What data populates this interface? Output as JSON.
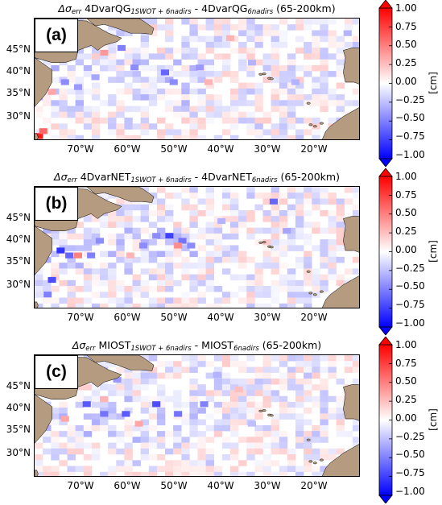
{
  "colors": {
    "land": "#b59b80",
    "positive_max": "#ff0000",
    "negative_max": "#0000ff",
    "zero": "#ffffff"
  },
  "colorbar": {
    "ticks": [
      "1.00",
      "0.75",
      "0.50",
      "0.25",
      "0.00",
      "−0.25",
      "−0.50",
      "−0.75",
      "−1.00"
    ],
    "label": "[cm]",
    "extend": "both",
    "colormap": "bwr"
  },
  "axes": {
    "lat_ticks": [
      "45°N",
      "40°N",
      "35°N",
      "30°N"
    ],
    "lon_ticks": [
      "70°W",
      "60°W",
      "50°W",
      "40°W",
      "30°W",
      "20°W"
    ]
  },
  "panels": [
    {
      "label": "(a)",
      "title_prefix": "Δσ",
      "title_err": "err",
      "title_a": "4DvarQG",
      "title_a_sub": "1SWOT + 6nadirs",
      "title_sep": " - ",
      "title_b": "4DvarQG",
      "title_b_sub": "6nadirs",
      "title_suffix": " (65-200km)"
    },
    {
      "label": "(b)",
      "title_prefix": "Δσ",
      "title_err": "err",
      "title_a": "4DvarNET",
      "title_a_sub": "1SWOT + 6nadirs",
      "title_sep": " - ",
      "title_b": "4DvarNET",
      "title_b_sub": "6nadirs",
      "title_suffix": " (65-200km)"
    },
    {
      "label": "(c)",
      "title_prefix": "Δσ",
      "title_err": "err",
      "title_a": "MIOST",
      "title_a_sub": "1SWOT + 6nadirs",
      "title_sep": " - ",
      "title_b": "MIOST",
      "title_b_sub": "6nadirs",
      "title_suffix": " (65-200km)"
    }
  ],
  "chart_data": [
    {
      "type": "heatmap",
      "panel": "(a)",
      "title": "Δσerr 4DvarQG1SWOT+6nadirs - 4DvarQG6nadirs (65-200km)",
      "x_label": "",
      "y_label": "",
      "lon_range": [
        -80,
        -5
      ],
      "lat_range": [
        25,
        50
      ],
      "colorbar_range": [
        -1.0,
        1.0
      ],
      "colorbar_label": "[cm]",
      "cells_lonlat_value": [
        [
          -79,
          26,
          0.9
        ],
        [
          -78,
          27,
          0.6
        ],
        [
          -72,
          44,
          0.5
        ],
        [
          -64,
          43,
          0.4
        ],
        [
          -60,
          44,
          -0.5
        ],
        [
          -57,
          40,
          -0.45
        ],
        [
          -50,
          39,
          -0.6
        ],
        [
          -48,
          37,
          -0.45
        ],
        [
          -42,
          40,
          -0.4
        ],
        [
          -73,
          37,
          -0.45
        ],
        [
          -70,
          36,
          -0.4
        ],
        [
          -66,
          38,
          -0.35
        ],
        [
          -76,
          35,
          0.35
        ],
        [
          -35,
          46,
          0.3
        ],
        [
          -30,
          41,
          -0.3
        ],
        [
          -20,
          37,
          -0.3
        ],
        [
          -40,
          37,
          0.3
        ],
        [
          -8,
          47,
          -0.3
        ]
      ]
    },
    {
      "type": "heatmap",
      "panel": "(b)",
      "title": "Δσerr 4DvarNET1SWOT+6nadirs - 4DvarNET6nadirs (65-200km)",
      "x_label": "",
      "y_label": "",
      "lon_range": [
        -80,
        -5
      ],
      "lat_range": [
        25,
        50
      ],
      "colorbar_range": [
        -1.0,
        1.0
      ],
      "colorbar_label": "[cm]",
      "cells_lonlat_value": [
        [
          -74,
          37,
          -0.8
        ],
        [
          -72,
          36,
          -0.6
        ],
        [
          -76,
          31,
          -0.7
        ],
        [
          -77,
          28,
          -0.5
        ],
        [
          -70,
          36,
          0.5
        ],
        [
          -67,
          36,
          -0.5
        ],
        [
          -65,
          39,
          -0.45
        ],
        [
          -55,
          38,
          -0.45
        ],
        [
          -52,
          40,
          -0.45
        ],
        [
          -49,
          40,
          -0.75
        ],
        [
          -46,
          39,
          -0.55
        ],
        [
          -44,
          38,
          -0.45
        ],
        [
          -25,
          47,
          -0.6
        ],
        [
          -22,
          41,
          -0.35
        ],
        [
          -47,
          38,
          0.45
        ],
        [
          -58,
          36,
          0.3
        ],
        [
          -37,
          43,
          -0.3
        ]
      ]
    },
    {
      "type": "heatmap",
      "panel": "(c)",
      "title": "Δσerr MIOST1SWOT+6nadirs - MIOST6nadirs (65-200km)",
      "x_label": "",
      "y_label": "",
      "lon_range": [
        -80,
        -5
      ],
      "lat_range": [
        25,
        50
      ],
      "colorbar_range": [
        -1.0,
        1.0
      ],
      "colorbar_label": "[cm]",
      "cells_lonlat_value": [
        [
          -68,
          40,
          -0.65
        ],
        [
          -64,
          38,
          -0.55
        ],
        [
          -59,
          38,
          -0.65
        ],
        [
          -52,
          40,
          -0.7
        ],
        [
          -47,
          38,
          -0.55
        ],
        [
          -41,
          40,
          -0.5
        ],
        [
          -61,
          45,
          -0.4
        ],
        [
          -73,
          37,
          0.35
        ],
        [
          -56,
          36,
          0.35
        ],
        [
          -64,
          41,
          0.3
        ],
        [
          -38,
          46,
          -0.3
        ],
        [
          -33,
          43,
          0.25
        ],
        [
          -30,
          36,
          -0.25
        ]
      ]
    }
  ]
}
